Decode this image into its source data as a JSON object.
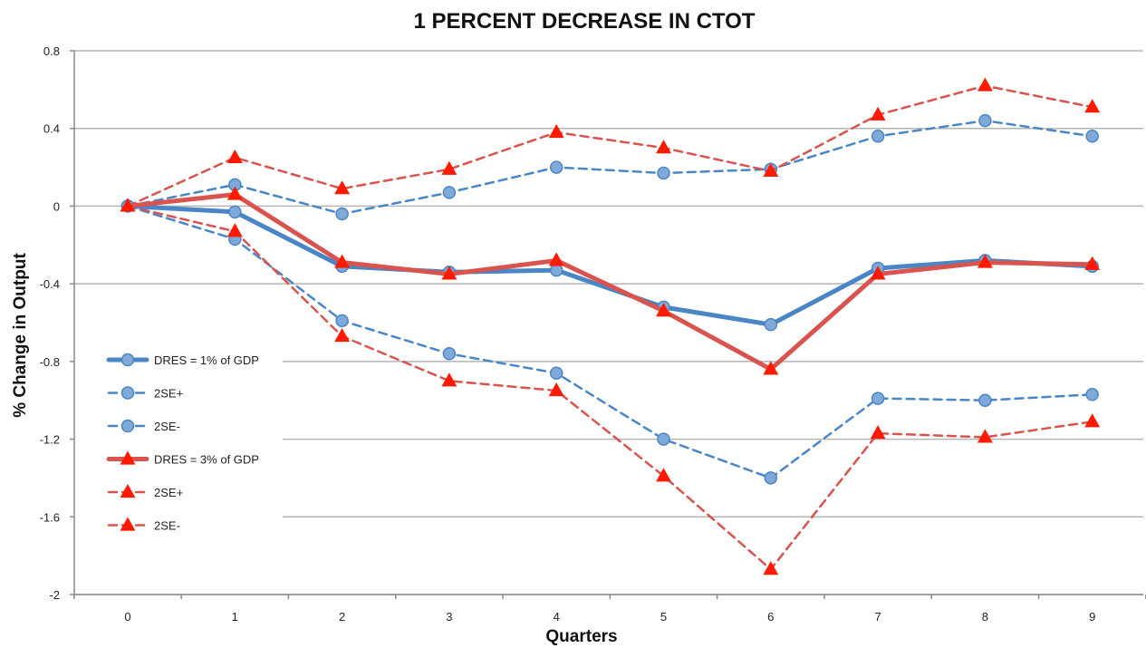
{
  "chart_data": {
    "type": "line",
    "title": "1 PERCENT DECREASE IN CTOT",
    "xlabel": "Quarters",
    "ylabel": "% Change in Output",
    "x": [
      0,
      1,
      2,
      3,
      4,
      5,
      6,
      7,
      8,
      9
    ],
    "x_tick_labels": [
      "0",
      "1",
      "2",
      "3",
      "4",
      "5",
      "6",
      "7",
      "8",
      "9"
    ],
    "ylim": [
      -2,
      0.8
    ],
    "y_ticks": [
      0.8,
      0.4,
      0,
      -0.4,
      -0.8,
      -1.2,
      -1.6,
      -2
    ],
    "y_tick_labels": [
      "0.8",
      "0.4",
      "0",
      "-0.4",
      "-0.8",
      "-1.2",
      "-1.6",
      "-2"
    ],
    "grid": "horizontal",
    "legend_position": "left-middle",
    "series": [
      {
        "name": "DRES = 1% of GDP",
        "color": "#4A86C5",
        "style": "solid",
        "marker": "circle",
        "values": [
          0,
          -0.03,
          -0.31,
          -0.34,
          -0.33,
          -0.52,
          -0.61,
          -0.32,
          -0.28,
          -0.31
        ]
      },
      {
        "name": "2SE+",
        "color": "#4A86C5",
        "style": "dashed",
        "marker": "circle",
        "values": [
          0,
          0.11,
          -0.04,
          0.07,
          0.2,
          0.17,
          0.19,
          0.36,
          0.44,
          0.36
        ]
      },
      {
        "name": "2SE-",
        "color": "#4A86C5",
        "style": "dashed",
        "marker": "circle",
        "values": [
          0,
          -0.17,
          -0.59,
          -0.76,
          -0.86,
          -1.2,
          -1.4,
          -0.99,
          -1.0,
          -0.97
        ]
      },
      {
        "name": "DRES = 3% of GDP",
        "color": "#D9534F",
        "style": "solid",
        "marker": "triangle",
        "values": [
          0,
          0.06,
          -0.29,
          -0.35,
          -0.28,
          -0.54,
          -0.84,
          -0.35,
          -0.29,
          -0.3
        ]
      },
      {
        "name": "2SE+",
        "color": "#D9534F",
        "style": "dashed",
        "marker": "triangle",
        "values": [
          0,
          0.25,
          0.09,
          0.19,
          0.38,
          0.3,
          0.18,
          0.47,
          0.62,
          0.51
        ]
      },
      {
        "name": "2SE-",
        "color": "#D9534F",
        "style": "dashed",
        "marker": "triangle",
        "values": [
          0,
          -0.13,
          -0.67,
          -0.9,
          -0.95,
          -1.39,
          -1.87,
          -1.17,
          -1.19,
          -1.11
        ]
      }
    ]
  }
}
